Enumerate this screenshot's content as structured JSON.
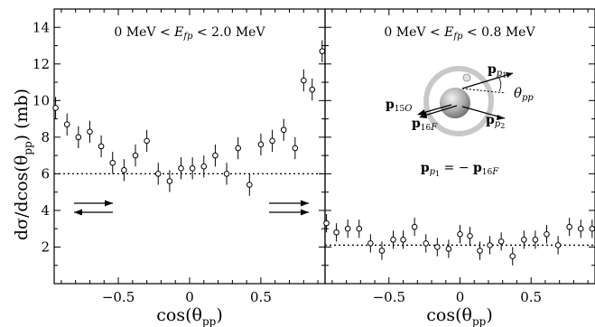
{
  "figure": {
    "ylabel_main": "dσ/dcos(θ",
    "ylabel_sub": "pp",
    "ylabel_tail": ") (mb)",
    "yticks": [
      "2",
      "4",
      "6",
      "8",
      "10",
      "12",
      "14"
    ]
  },
  "chart_data": [
    {
      "type": "scatter",
      "panel": "left",
      "title": "0 MeV < E_fp < 2.0 MeV",
      "title_parts": {
        "prefix": "0 MeV < ",
        "var": "E",
        "sub": "fp",
        "suffix": " < 2.0 MeV"
      },
      "xlabel": "cos(θpp)",
      "xlabel_parts": {
        "main": "cos(θ",
        "sub": "pp",
        "tail": ")"
      },
      "xticks": [
        "−0.5",
        "0",
        "0.5"
      ],
      "xlim": [
        -0.95,
        0.95
      ],
      "ylim": [
        0,
        15
      ],
      "reference_line": 6.0,
      "arrows": [
        "right-top-left",
        "left-bottom-left",
        "right-top-right",
        "right-bottom-right"
      ],
      "points": [
        {
          "x": -0.94,
          "y": 9.6,
          "err": 0.6
        },
        {
          "x": -0.86,
          "y": 8.7,
          "err": 0.6
        },
        {
          "x": -0.78,
          "y": 8.0,
          "err": 0.6
        },
        {
          "x": -0.7,
          "y": 8.3,
          "err": 0.6
        },
        {
          "x": -0.62,
          "y": 7.5,
          "err": 0.6
        },
        {
          "x": -0.54,
          "y": 6.6,
          "err": 0.6
        },
        {
          "x": -0.46,
          "y": 6.2,
          "err": 0.6
        },
        {
          "x": -0.38,
          "y": 7.0,
          "err": 0.6
        },
        {
          "x": -0.3,
          "y": 7.8,
          "err": 0.6
        },
        {
          "x": -0.22,
          "y": 6.0,
          "err": 0.6
        },
        {
          "x": -0.14,
          "y": 5.6,
          "err": 0.6
        },
        {
          "x": -0.06,
          "y": 6.3,
          "err": 0.6
        },
        {
          "x": 0.02,
          "y": 6.3,
          "err": 0.6
        },
        {
          "x": 0.1,
          "y": 6.4,
          "err": 0.6
        },
        {
          "x": 0.18,
          "y": 7.0,
          "err": 0.6
        },
        {
          "x": 0.26,
          "y": 6.0,
          "err": 0.6
        },
        {
          "x": 0.34,
          "y": 7.4,
          "err": 0.6
        },
        {
          "x": 0.42,
          "y": 5.4,
          "err": 0.6
        },
        {
          "x": 0.5,
          "y": 7.6,
          "err": 0.6
        },
        {
          "x": 0.58,
          "y": 7.8,
          "err": 0.6
        },
        {
          "x": 0.66,
          "y": 8.4,
          "err": 0.6
        },
        {
          "x": 0.74,
          "y": 7.4,
          "err": 0.6
        },
        {
          "x": 0.8,
          "y": 11.1,
          "err": 0.6
        },
        {
          "x": 0.86,
          "y": 10.6,
          "err": 0.6
        },
        {
          "x": 0.93,
          "y": 12.7,
          "err": 0.6
        }
      ]
    },
    {
      "type": "scatter",
      "panel": "right",
      "title": "0 MeV < E_fp < 0.8 MeV",
      "title_parts": {
        "prefix": "0 MeV < ",
        "var": "E",
        "sub": "fp",
        "suffix": " < 0.8 MeV"
      },
      "xlabel": "cos(θpp)",
      "xlabel_parts": {
        "main": "cos(θ",
        "sub": "pp",
        "tail": ")"
      },
      "xticks": [
        "−0.5",
        "0",
        "0.5"
      ],
      "xlim": [
        -0.95,
        0.95
      ],
      "ylim": [
        0,
        15
      ],
      "reference_line": 2.1,
      "inset_labels": {
        "p_p1": {
          "main": "p",
          "sub": "p",
          "subsub": "1"
        },
        "p_p2": {
          "main": "p",
          "sub": "p",
          "subsub": "2"
        },
        "p_15O": {
          "main": "p",
          "sub": "15",
          "tail": "O"
        },
        "p_16F": {
          "main": "p",
          "sub": "16",
          "tail": "F"
        },
        "theta_pp": {
          "main": "θ",
          "sub": "pp"
        }
      },
      "relation": {
        "lhs_main": "p",
        "lhs_sub": "p",
        "lhs_subsub": "1",
        "mid": " = − ",
        "rhs_main": "p",
        "rhs_sub": "16",
        "rhs_tail": "F"
      },
      "points": [
        {
          "x": -0.94,
          "y": 3.3,
          "err": 0.5
        },
        {
          "x": -0.87,
          "y": 2.8,
          "err": 0.5
        },
        {
          "x": -0.79,
          "y": 3.0,
          "err": 0.5
        },
        {
          "x": -0.71,
          "y": 3.0,
          "err": 0.5
        },
        {
          "x": -0.63,
          "y": 2.2,
          "err": 0.5
        },
        {
          "x": -0.55,
          "y": 1.8,
          "err": 0.5
        },
        {
          "x": -0.47,
          "y": 2.4,
          "err": 0.5
        },
        {
          "x": -0.4,
          "y": 2.4,
          "err": 0.5
        },
        {
          "x": -0.32,
          "y": 3.1,
          "err": 0.5
        },
        {
          "x": -0.24,
          "y": 2.2,
          "err": 0.5
        },
        {
          "x": -0.16,
          "y": 2.0,
          "err": 0.5
        },
        {
          "x": -0.08,
          "y": 1.9,
          "err": 0.5
        },
        {
          "x": 0.0,
          "y": 2.7,
          "err": 0.5
        },
        {
          "x": 0.07,
          "y": 2.6,
          "err": 0.5
        },
        {
          "x": 0.14,
          "y": 1.8,
          "err": 0.5
        },
        {
          "x": 0.21,
          "y": 2.1,
          "err": 0.5
        },
        {
          "x": 0.29,
          "y": 2.3,
          "err": 0.5
        },
        {
          "x": 0.37,
          "y": 1.5,
          "err": 0.5
        },
        {
          "x": 0.45,
          "y": 2.4,
          "err": 0.5
        },
        {
          "x": 0.53,
          "y": 2.4,
          "err": 0.5
        },
        {
          "x": 0.61,
          "y": 2.7,
          "err": 0.5
        },
        {
          "x": 0.69,
          "y": 2.1,
          "err": 0.5
        },
        {
          "x": 0.77,
          "y": 3.1,
          "err": 0.5
        },
        {
          "x": 0.85,
          "y": 3.0,
          "err": 0.5
        },
        {
          "x": 0.93,
          "y": 3.0,
          "err": 0.5
        }
      ]
    }
  ]
}
